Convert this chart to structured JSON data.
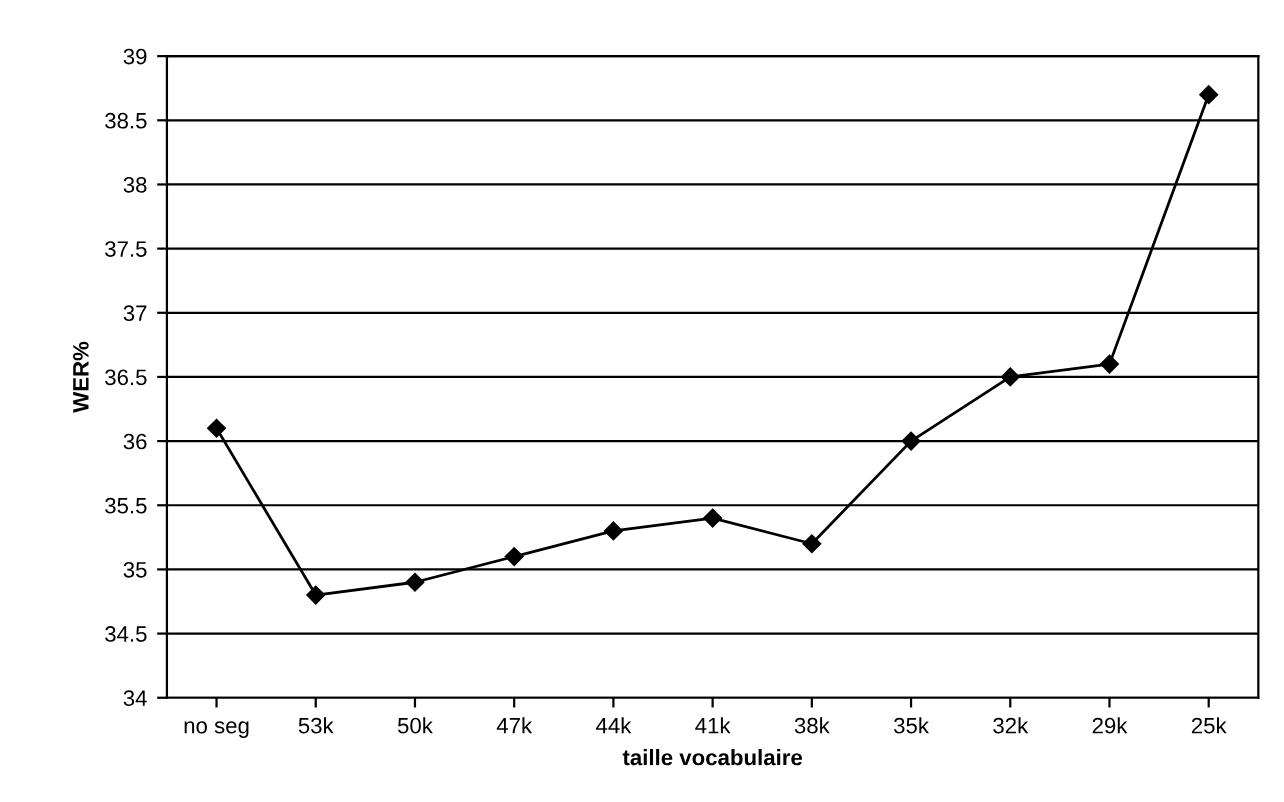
{
  "chart_data": {
    "type": "line",
    "xlabel": "taille vocabulaire",
    "ylabel": "WER%",
    "categories": [
      "no seg",
      "53k",
      "50k",
      "47k",
      "44k",
      "41k",
      "38k",
      "35k",
      "32k",
      "29k",
      "25k"
    ],
    "series": [
      {
        "color": "#000000",
        "values": [
          36.1,
          34.8,
          34.9,
          35.1,
          35.3,
          35.4,
          35.2,
          36.0,
          36.5,
          36.6,
          38.7
        ]
      }
    ],
    "ylim": [
      34,
      39
    ],
    "yticks": [
      34,
      34.5,
      35,
      35.5,
      36,
      36.5,
      37,
      37.5,
      38,
      38.5,
      39
    ],
    "grid": "y",
    "marker": "diamond",
    "line_style": "solid",
    "legend": false
  }
}
